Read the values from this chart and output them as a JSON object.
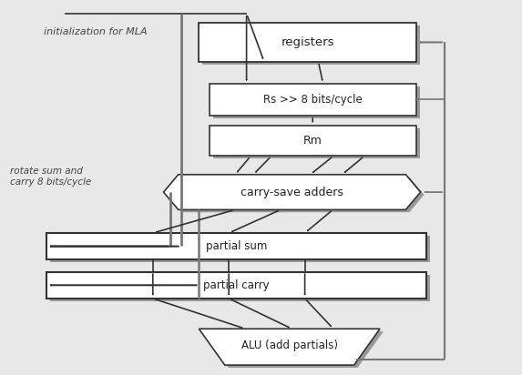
{
  "bg_color": "#e8e8e8",
  "box_color": "#ffffff",
  "box_edge": "#333333",
  "shadow_color": "#999999",
  "arrow_dark": "#333333",
  "arrow_gray": "#777777",
  "text_color": "#222222",
  "label_color": "#444444",
  "title_text": "registers",
  "rs_text": "Rs >> 8 bits/cycle",
  "rm_text": "Rm",
  "csa_text": "carry-save adders",
  "psum_text": "partial sum",
  "pcarry_text": "partial carry",
  "alu_text": "ALU (add partials)",
  "label_mla": "initialization for MLA",
  "label_rotate": "rotate sum and\ncarry 8 bits/cycle"
}
